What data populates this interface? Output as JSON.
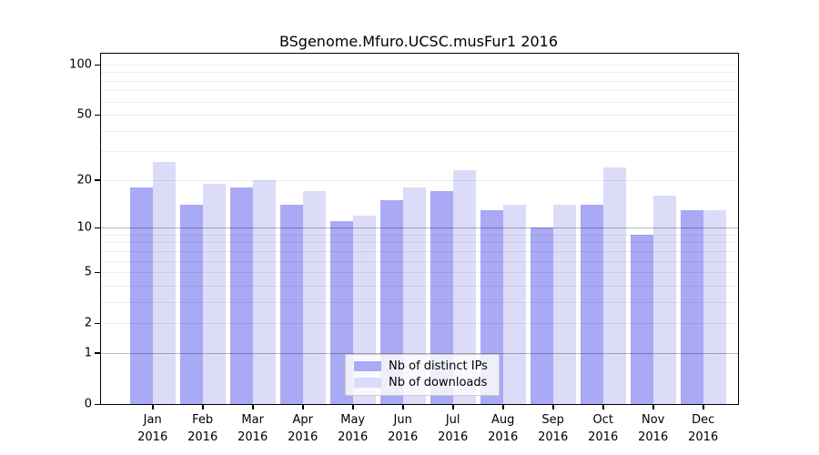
{
  "chart_data": {
    "type": "bar",
    "title": "BSgenome.Mfuro.UCSC.musFur1 2016",
    "categories": [
      "Jan",
      "Feb",
      "Mar",
      "Apr",
      "May",
      "Jun",
      "Jul",
      "Aug",
      "Sep",
      "Oct",
      "Nov",
      "Dec"
    ],
    "year": "2016",
    "series": [
      {
        "name": "Nb of distinct IPs",
        "color": "#a9a9f6",
        "values": [
          18,
          14,
          18,
          14,
          11,
          15,
          17,
          13,
          10,
          14,
          9,
          13
        ]
      },
      {
        "name": "Nb of downloads",
        "color": "#dcdcf8",
        "values": [
          26,
          19,
          20,
          17,
          12,
          18,
          23,
          14,
          14,
          24,
          16,
          13
        ]
      }
    ],
    "scale": "log1p",
    "ylim": [
      0,
      100
    ],
    "y_ticks": [
      0,
      1,
      2,
      5,
      10,
      20,
      50,
      100
    ],
    "minor_gridlines": [
      3,
      4,
      6,
      7,
      8,
      9,
      30,
      40,
      60,
      70,
      80,
      90
    ],
    "emphasized_gridlines": [
      1,
      10
    ],
    "grid": "horizontal",
    "legend_position": "bottom-center",
    "xlabel": "",
    "ylabel": ""
  },
  "colors": {
    "background": "#ffffff",
    "axis": "#000000",
    "grid_light": "rgba(0,0,0,0.07)",
    "grid_dark": "rgba(0,0,0,0.28)",
    "legend_border": "#cccccc"
  }
}
